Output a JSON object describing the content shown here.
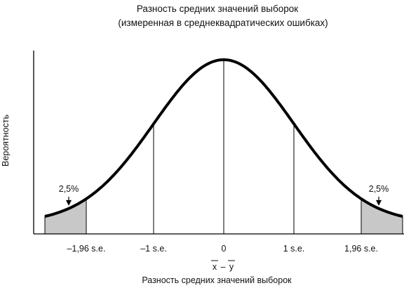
{
  "chart_data": {
    "type": "area",
    "title": "Разность средних значений выборок",
    "subtitle": "(измеренная в среднеквадратических ошибках)",
    "xlabel": "Разность средних значений выборок",
    "ylabel": "Вероятность",
    "x_symbol": {
      "left": "x",
      "dash": "–",
      "right": "y"
    },
    "xlim": [
      -2.55,
      2.55
    ],
    "grid": false,
    "legend": "none",
    "distribution": "standard normal",
    "x_ticks": [
      {
        "value": -1.96,
        "label": "–1,96 s.e."
      },
      {
        "value": -1,
        "label": "–1 s.e."
      },
      {
        "value": 0,
        "label": "0"
      },
      {
        "value": 1,
        "label": "1 s.e."
      },
      {
        "value": 1.96,
        "label": "1,96 s.e."
      }
    ],
    "reference_lines": [
      -1,
      0,
      1
    ],
    "shaded_tails": [
      {
        "from": -2.55,
        "to": -1.96,
        "label": "2,5%"
      },
      {
        "from": 1.96,
        "to": 2.55,
        "label": "2,5%"
      }
    ],
    "colors": {
      "curve": "#000000",
      "tail_fill": "#c8c8c8",
      "axis": "#000000"
    }
  }
}
